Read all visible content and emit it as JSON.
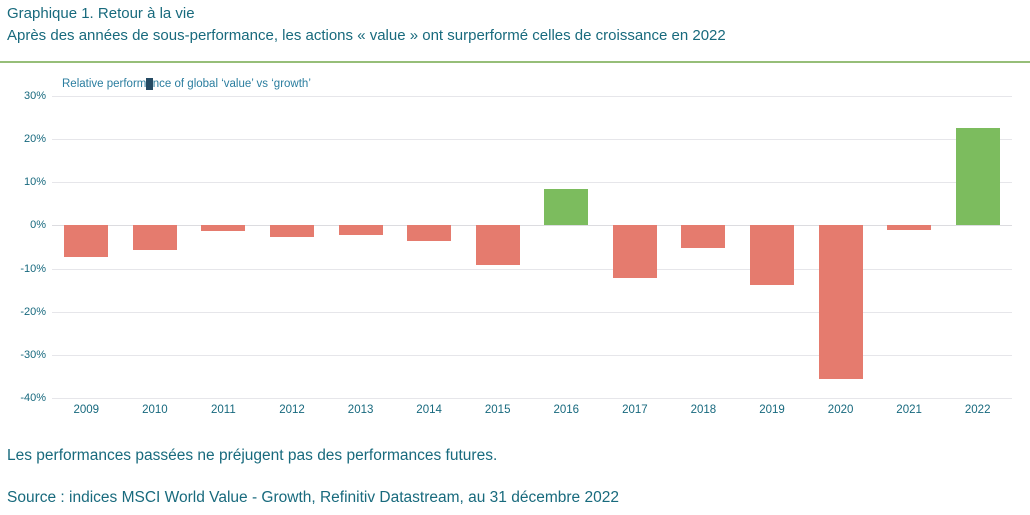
{
  "header": {
    "title": "Graphique 1. Retour à la vie",
    "subtitle": "Après des années de sous-performance, les actions « value » ont surperformé celles de croissance en 2022"
  },
  "inner_title": {
    "before": "Relative perform",
    "cursor_char": "a",
    "after": "nce of global ‘value’ vs ‘growth’"
  },
  "chart_data": {
    "type": "bar",
    "title": "Relative performance of global ‘value’ vs ‘growth’",
    "categories": [
      "2009",
      "2010",
      "2011",
      "2012",
      "2013",
      "2014",
      "2015",
      "2016",
      "2017",
      "2018",
      "2019",
      "2020",
      "2021",
      "2022"
    ],
    "values": [
      -7.4,
      -5.8,
      -1.4,
      -2.7,
      -2.2,
      -3.6,
      -9.2,
      8.5,
      -12.3,
      -5.3,
      -13.9,
      -35.6,
      -1.1,
      22.5
    ],
    "xlabel": "",
    "ylabel": "",
    "ylim": [
      -40,
      30
    ],
    "ytick_step": 10,
    "ytick_suffix": "%",
    "grid": true,
    "legend": "none"
  },
  "footer": {
    "disclaimer": "Les performances passées ne préjugent pas des performances futures.",
    "source": "Source : indices MSCI World Value - Growth, Refinitiv Datastream, au 31 décembre 2022"
  },
  "colors": {
    "teal_text": "#186a7d",
    "inner_title": "#2a7d9f",
    "axis_label": "#17697e",
    "grid": "#e6e6ea",
    "grid_zero": "#dcdce0",
    "bar_positive": "#7cbc5e",
    "bar_negative": "#e57b6e",
    "separator": "#96be78",
    "cursor_block": "#254a63"
  }
}
